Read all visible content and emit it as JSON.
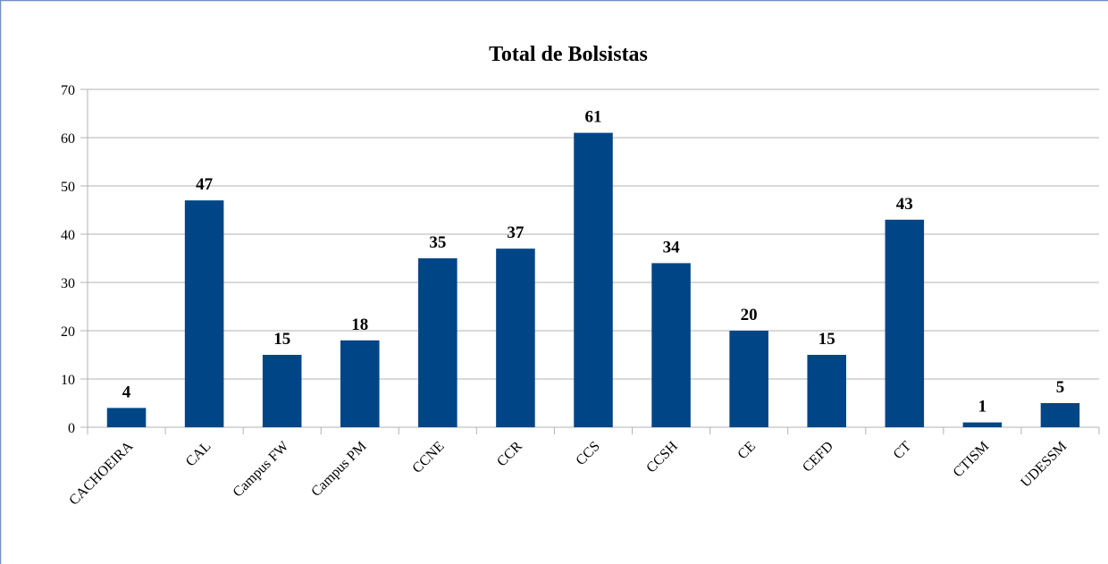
{
  "chart_data": {
    "type": "bar",
    "title": "Total de Bolsistas",
    "categories": [
      "CACHOEIRA",
      "CAL",
      "Campus FW",
      "Campus PM",
      "CCNE",
      "CCR",
      "CCS",
      "CCSH",
      "CE",
      "CEFD",
      "CT",
      "CTISM",
      "UDESSM"
    ],
    "values": [
      4,
      47,
      15,
      18,
      35,
      37,
      61,
      34,
      20,
      15,
      43,
      1,
      5
    ],
    "color": "#004586",
    "ylim": [
      0,
      70
    ],
    "yticks": [
      0,
      10,
      20,
      30,
      40,
      50,
      60,
      70
    ],
    "grid": true
  }
}
